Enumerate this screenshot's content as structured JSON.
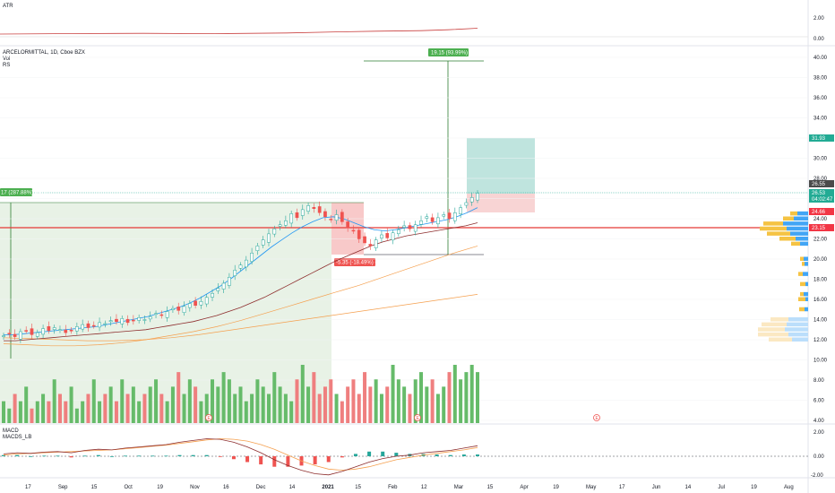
{
  "panes": {
    "atr": {
      "label": "ATR",
      "ticks": [
        "2.00",
        "0.00"
      ]
    },
    "main": {
      "title": "ARCELORMITTAL, 1D, Cboe BZX",
      "legend": [
        "Vol",
        "RS"
      ],
      "ticks": [
        "40.00",
        "38.00",
        "36.00",
        "34.00",
        "32.00",
        "30.00",
        "28.00",
        "26.00",
        "24.00",
        "22.00",
        "20.00",
        "18.00",
        "16.00",
        "14.00",
        "12.00",
        "10.00",
        "8.00",
        "6.00",
        "4.00"
      ],
      "price_tags": [
        {
          "text": "31.93",
          "color": "#22ab94"
        },
        {
          "text": "26.55",
          "color": "#4a4a4a"
        },
        {
          "text": "26.53",
          "color": "#22ab94"
        },
        {
          "text": "04:02:47",
          "color": "#22ab94"
        },
        {
          "text": "24.66",
          "color": "#f23645"
        },
        {
          "text": "23.15",
          "color": "#f23645"
        }
      ],
      "annotations": {
        "top_measure": "19.15 (93.99%) 1915",
        "left_measure": "17 (287.88%) 1911",
        "mid_measure": "-5.35 (-18.49%) -535"
      }
    },
    "macd": {
      "labels": [
        "MACD",
        "MACDS_LB"
      ],
      "ticks": [
        "2.00",
        "0.00",
        "-2.00"
      ]
    }
  },
  "time_axis": [
    "17",
    "Sep",
    "15",
    "Oct",
    "19",
    "Nov",
    "16",
    "Dec",
    "14",
    "2021",
    "15",
    "Feb",
    "12",
    "Mar",
    "15",
    "Apr",
    "19",
    "May",
    "17",
    "Jun",
    "14",
    "Jul",
    "19",
    "Aug"
  ],
  "colors": {
    "up": "#26a69a",
    "down": "#ef5350",
    "vol_up": "#66bb6a",
    "vol_down": "#ef7f7f",
    "ma_fast": "#2196f3",
    "ma_slow": "#8d2d2d",
    "ma_orange": "#f5a04f",
    "support": "#e53935"
  },
  "chart_data": {
    "type": "candlestick",
    "title": "ARCELORMITTAL, 1D, Cboe BZX",
    "x_range": [
      "2020-08-10",
      "2021-08-06"
    ],
    "ylim": [
      4,
      41
    ],
    "key_levels": {
      "resistance_line": 23.15,
      "target": 31.93,
      "last": 26.53
    },
    "closes": [
      12.4,
      12.6,
      12.3,
      12.8,
      12.9,
      12.5,
      12.7,
      13.1,
      12.9,
      13.2,
      13.0,
      12.7,
      12.9,
      13.3,
      13.5,
      13.2,
      13.4,
      13.7,
      13.6,
      13.9,
      13.8,
      14.1,
      13.7,
      13.9,
      14.2,
      14.0,
      14.3,
      14.6,
      14.4,
      14.8,
      15.1,
      14.9,
      15.3,
      15.6,
      15.4,
      15.8,
      16.2,
      16.6,
      17.1,
      17.6,
      18.2,
      18.9,
      19.4,
      19.9,
      20.6,
      21.3,
      21.9,
      22.5,
      23.0,
      23.4,
      23.8,
      24.5,
      24.1,
      24.9,
      25.3,
      25.0,
      24.6,
      24.2,
      23.9,
      24.4,
      23.7,
      23.1,
      22.8,
      22.0,
      21.6,
      21.3,
      21.9,
      22.4,
      22.1,
      22.6,
      22.9,
      23.3,
      23.0,
      23.4,
      23.8,
      24.2,
      23.7,
      24.1,
      24.4,
      24.0,
      24.6,
      25.1,
      25.6,
      26.1,
      26.53
    ],
    "ma_fast": [
      12.5,
      12.5,
      12.6,
      12.7,
      12.8,
      12.9,
      13.0,
      13.1,
      13.2,
      13.3,
      13.5,
      13.7,
      13.9,
      14.1,
      14.3,
      14.6,
      14.9,
      15.2,
      15.6,
      16.1,
      16.7,
      17.3,
      18.0,
      18.8,
      19.6,
      20.4,
      21.2,
      21.9,
      22.6,
      23.2,
      23.7,
      24.1,
      24.2,
      24.0,
      23.6,
      23.2,
      22.9,
      22.8,
      22.9,
      23.1,
      23.3,
      23.5,
      23.7,
      23.9,
      24.2,
      24.6,
      25.1
    ],
    "ma_slow": [
      11.9,
      11.9,
      12.0,
      12.1,
      12.2,
      12.3,
      12.4,
      12.5,
      12.6,
      12.7,
      12.8,
      12.9,
      13.0,
      13.2,
      13.4,
      13.6,
      13.8,
      14.1,
      14.4,
      14.8,
      15.2,
      15.7,
      16.2,
      16.8,
      17.4,
      18.0,
      18.6,
      19.2,
      19.8,
      20.3,
      20.8,
      21.3,
      21.7,
      22.0,
      22.3,
      22.5,
      22.7,
      22.9,
      23.1,
      23.3,
      23.6
    ],
    "ma_200": [
      11.6,
      11.5,
      11.4,
      11.4,
      11.5,
      11.7,
      12.0,
      12.4,
      12.8,
      13.3,
      13.9,
      14.6,
      15.3,
      16.0,
      16.7,
      17.4,
      18.2,
      19.0,
      19.8,
      20.6,
      21.3
    ],
    "ma_long": [
      12.2,
      12.1,
      12.0,
      11.9,
      11.9,
      12.0,
      12.2,
      12.5,
      12.9,
      13.3,
      13.7,
      14.1,
      14.5,
      14.9,
      15.3,
      15.7,
      16.1,
      16.5
    ],
    "volume": [
      3,
      2,
      4,
      3,
      5,
      2,
      3,
      4,
      3,
      6,
      4,
      3,
      5,
      2,
      3,
      4,
      6,
      3,
      4,
      5,
      3,
      6,
      4,
      5,
      3,
      4,
      5,
      6,
      4,
      3,
      5,
      7,
      4,
      6,
      5,
      3,
      4,
      6,
      5,
      7,
      6,
      4,
      5,
      3,
      4,
      6,
      5,
      4,
      7,
      5,
      4,
      3,
      6,
      8,
      5,
      7,
      4,
      5,
      6,
      4,
      3,
      5,
      6,
      4,
      7,
      5,
      6,
      4,
      5,
      8,
      6,
      5,
      4,
      6,
      7,
      5,
      6,
      4,
      5,
      7,
      8,
      6,
      7,
      8,
      7
    ],
    "volume_up": [
      true,
      true,
      false,
      true,
      true,
      false,
      true,
      true,
      false,
      true,
      false,
      false,
      true,
      true,
      true,
      false,
      true,
      true,
      false,
      true,
      false,
      true,
      false,
      true,
      true,
      false,
      true,
      true,
      false,
      true,
      true,
      false,
      true,
      true,
      false,
      true,
      true,
      true,
      true,
      true,
      true,
      true,
      true,
      true,
      true,
      true,
      true,
      true,
      true,
      true,
      true,
      true,
      false,
      true,
      true,
      false,
      false,
      false,
      false,
      true,
      false,
      false,
      false,
      false,
      false,
      false,
      true,
      true,
      false,
      true,
      true,
      true,
      false,
      true,
      true,
      true,
      false,
      true,
      true,
      false,
      true,
      true,
      true,
      true,
      true
    ],
    "volume_profile": {
      "levels": [
        24.5,
        24.0,
        23.5,
        23.0,
        22.5,
        22.0,
        21.5,
        20.0,
        19.5,
        18.5,
        17.5,
        16.5,
        16.0,
        15.0,
        14.0,
        13.5,
        13.0,
        12.5,
        12.0
      ],
      "buy": [
        8,
        12,
        22,
        30,
        26,
        18,
        10,
        4,
        3,
        5,
        6,
        4,
        8,
        6,
        20,
        28,
        30,
        34,
        26
      ],
      "sell": [
        12,
        16,
        28,
        24,
        20,
        14,
        9,
        5,
        4,
        6,
        3,
        5,
        3,
        4,
        22,
        24,
        26,
        22,
        18
      ]
    },
    "macd": [
      0.2,
      0.3,
      0.25,
      0.35,
      0.4,
      0.3,
      0.5,
      0.6,
      0.55,
      0.7,
      0.8,
      0.9,
      1.0,
      1.2,
      1.35,
      1.5,
      1.45,
      1.2,
      0.8,
      0.3,
      -0.3,
      -0.8,
      -1.2,
      -1.5,
      -1.6,
      -1.3,
      -0.9,
      -0.5,
      -0.2,
      0.0,
      0.1,
      0.3,
      0.4,
      0.5,
      0.7,
      0.9
    ],
    "macd_signal": [
      0.1,
      0.2,
      0.25,
      0.3,
      0.35,
      0.4,
      0.45,
      0.5,
      0.55,
      0.65,
      0.75,
      0.85,
      0.95,
      1.1,
      1.25,
      1.4,
      1.5,
      1.45,
      1.3,
      1.0,
      0.6,
      0.1,
      -0.4,
      -0.8,
      -1.1,
      -1.2,
      -1.1,
      -0.9,
      -0.6,
      -0.3,
      -0.1,
      0.1,
      0.25,
      0.4,
      0.55,
      0.75
    ]
  }
}
